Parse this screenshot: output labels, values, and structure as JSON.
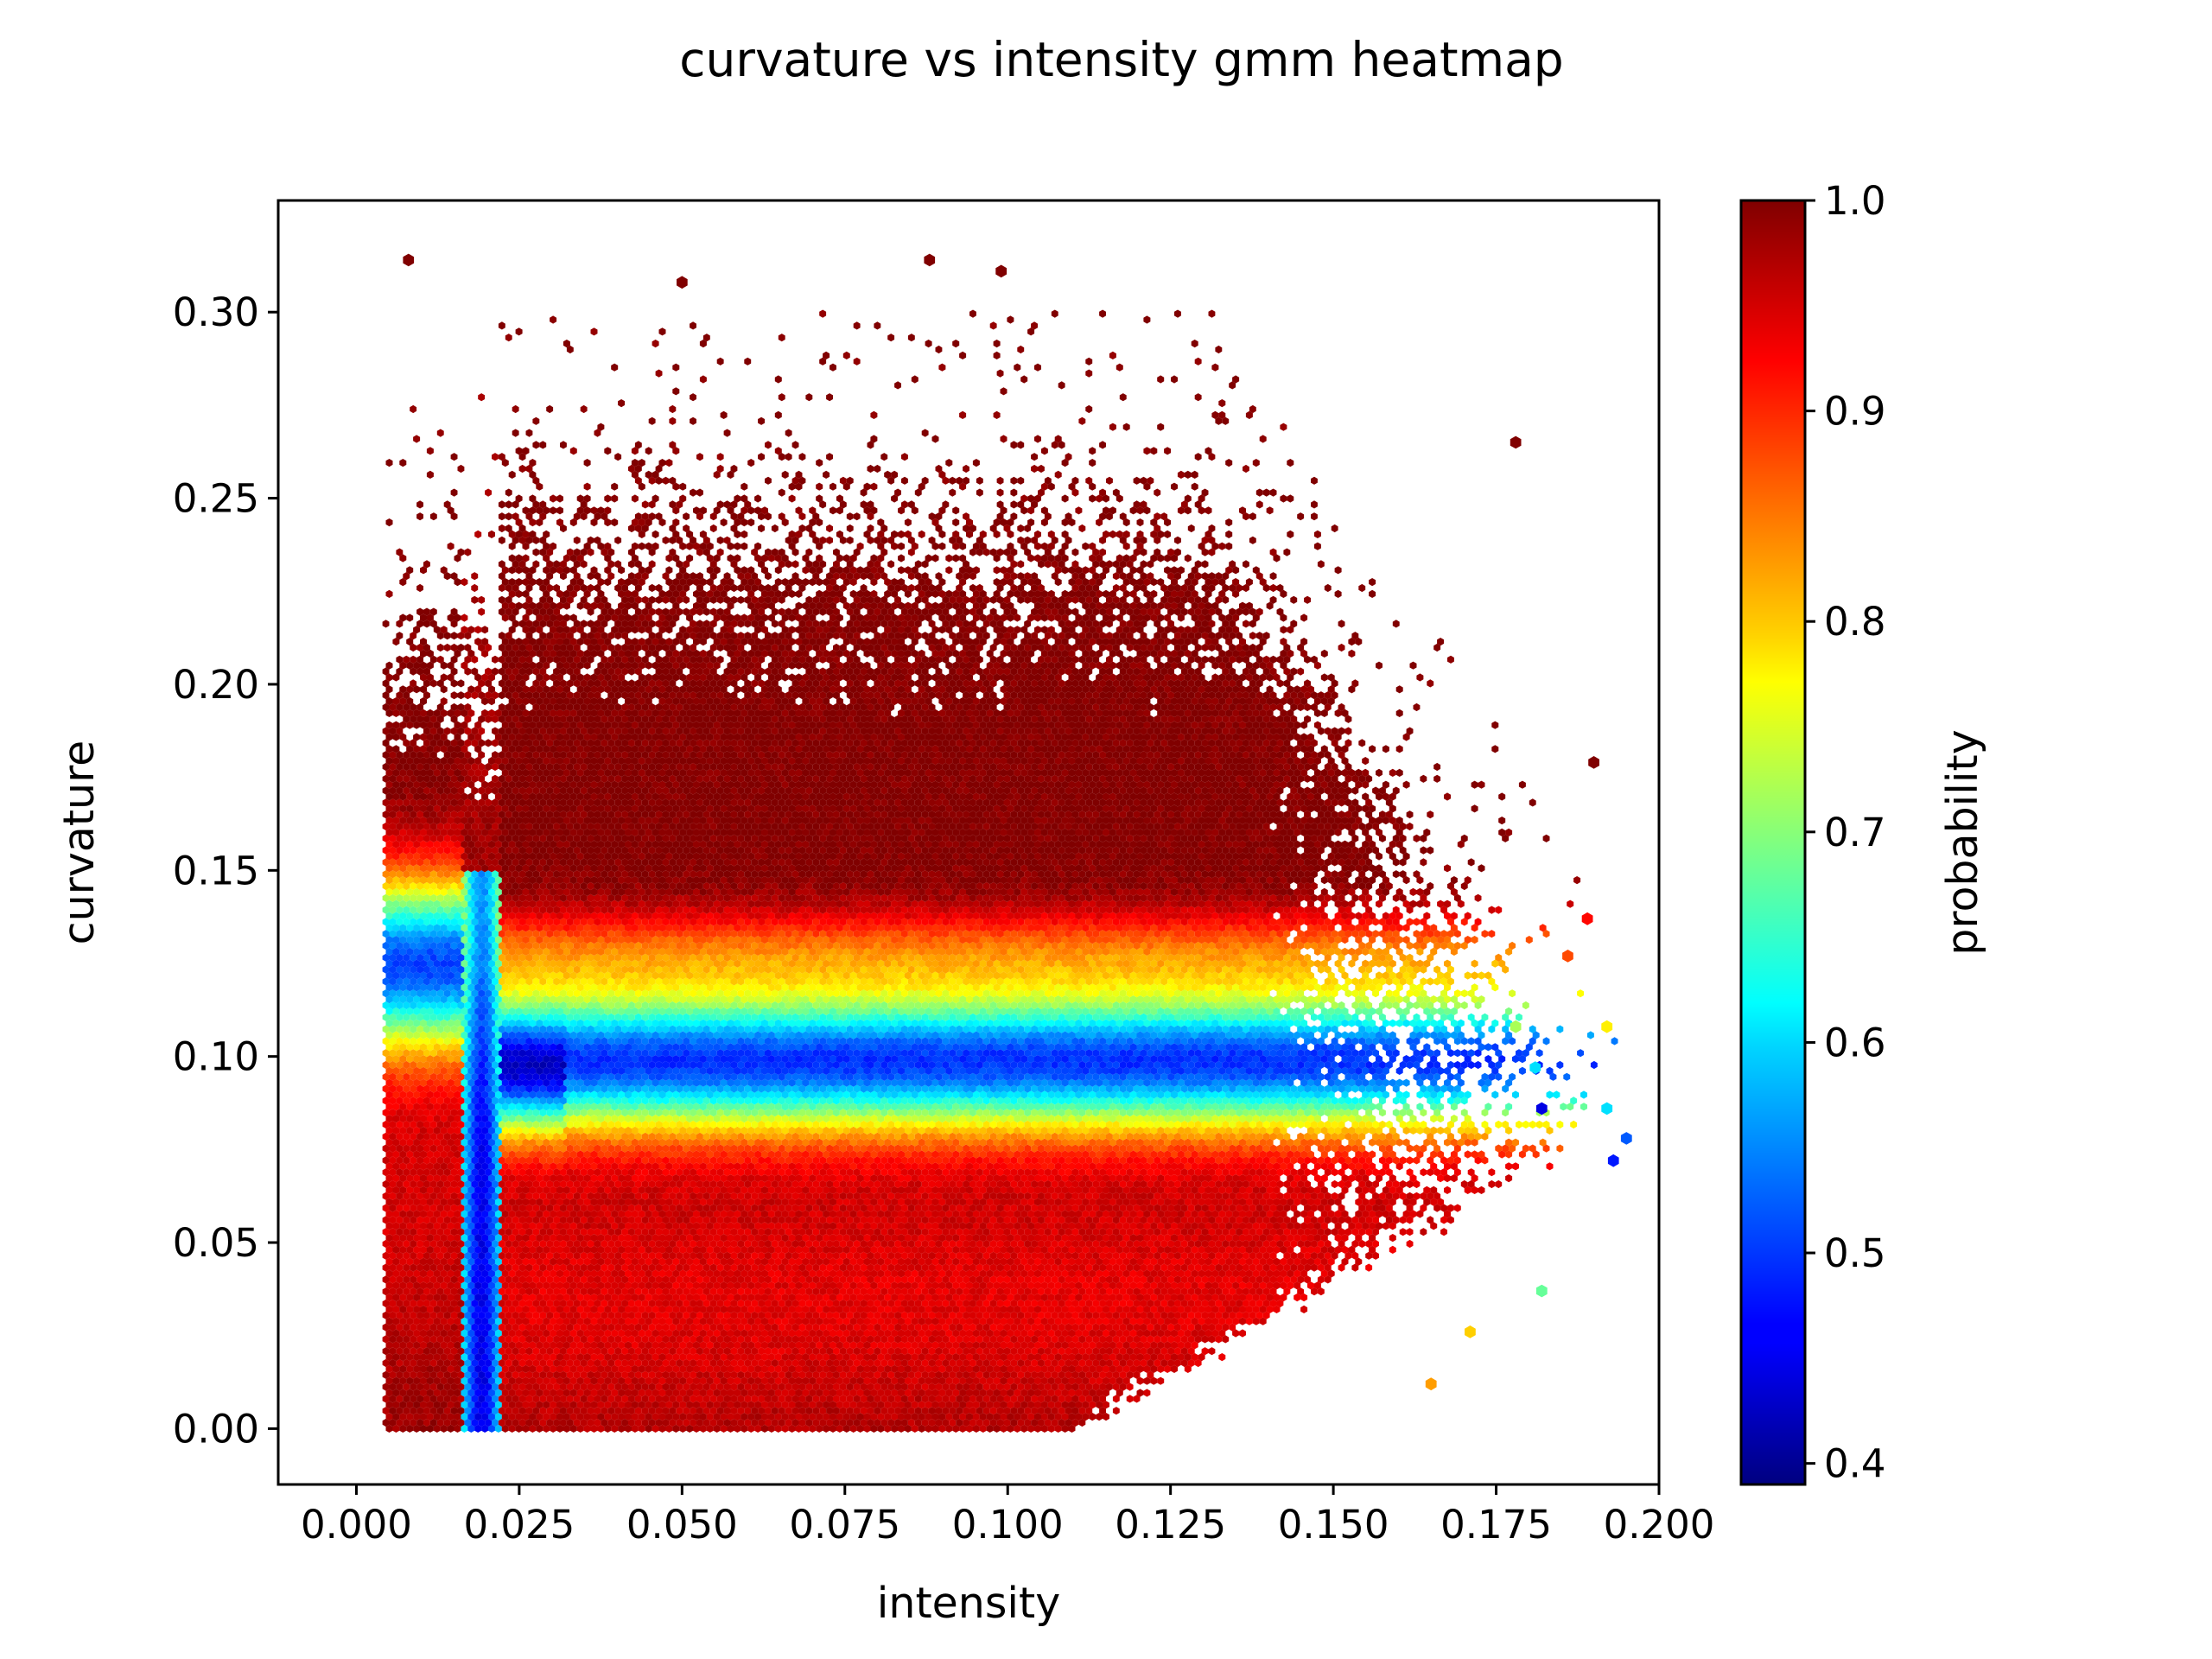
{
  "title": "curvature vs intensity gmm heatmap",
  "chart_data": {
    "type": "heatmap",
    "plot_style": "hexbin",
    "title": "curvature vs intensity gmm heatmap",
    "xlabel": "intensity",
    "ylabel": "curvature",
    "xlim": [
      -0.012,
      0.2
    ],
    "ylim": [
      -0.015,
      0.33
    ],
    "xticks": [
      "0.000",
      "0.025",
      "0.050",
      "0.075",
      "0.100",
      "0.125",
      "0.150",
      "0.175",
      "0.200"
    ],
    "yticks": [
      "0.00",
      "0.05",
      "0.10",
      "0.15",
      "0.20",
      "0.25",
      "0.30"
    ],
    "colorbar": {
      "label": "probability",
      "colormap": "jet",
      "range": [
        0.39,
        1.0
      ],
      "ticks": [
        "0.4",
        "0.5",
        "0.6",
        "0.7",
        "0.8",
        "0.9",
        "1.0"
      ]
    },
    "grid": false,
    "regions": [
      {
        "intensity_range": [
          0.004,
          0.016
        ],
        "curvature_range": [
          0.0,
          0.1
        ],
        "probability": 0.93
      },
      {
        "intensity_range": [
          0.004,
          0.016
        ],
        "curvature_range": [
          0.1,
          0.14
        ],
        "probability": 0.55
      },
      {
        "intensity_range": [
          0.004,
          0.016
        ],
        "curvature_range": [
          0.14,
          0.17
        ],
        "probability": 0.92
      },
      {
        "intensity_range": [
          0.017,
          0.021
        ],
        "curvature_range": [
          0.0,
          0.1
        ],
        "probability": 0.62
      },
      {
        "intensity_range": [
          0.022,
          0.16
        ],
        "curvature_range": [
          0.0,
          0.07
        ],
        "probability": 0.96
      },
      {
        "intensity_range": [
          0.022,
          0.16
        ],
        "curvature_range": [
          0.09,
          0.11
        ],
        "probability": 0.5
      },
      {
        "intensity_range": [
          0.022,
          0.16
        ],
        "curvature_range": [
          0.12,
          0.14
        ],
        "probability": 0.9
      },
      {
        "intensity_range": [
          0.022,
          0.15
        ],
        "curvature_range": [
          0.15,
          0.29
        ],
        "probability": 1.0
      }
    ],
    "outer_points": [
      {
        "x": 0.008,
        "y": 0.314,
        "p": 1.0
      },
      {
        "x": 0.05,
        "y": 0.308,
        "p": 1.0
      },
      {
        "x": 0.088,
        "y": 0.314,
        "p": 1.0
      },
      {
        "x": 0.099,
        "y": 0.311,
        "p": 1.0
      },
      {
        "x": 0.178,
        "y": 0.265,
        "p": 1.0
      },
      {
        "x": 0.19,
        "y": 0.179,
        "p": 1.0
      },
      {
        "x": 0.189,
        "y": 0.137,
        "p": 0.92
      },
      {
        "x": 0.186,
        "y": 0.127,
        "p": 0.88
      },
      {
        "x": 0.192,
        "y": 0.108,
        "p": 0.78
      },
      {
        "x": 0.192,
        "y": 0.086,
        "p": 0.6
      },
      {
        "x": 0.195,
        "y": 0.078,
        "p": 0.52
      },
      {
        "x": 0.193,
        "y": 0.072,
        "p": 0.48
      },
      {
        "x": 0.182,
        "y": 0.037,
        "p": 0.68
      },
      {
        "x": 0.165,
        "y": 0.012,
        "p": 0.83
      },
      {
        "x": 0.171,
        "y": 0.026,
        "p": 0.8
      },
      {
        "x": 0.182,
        "y": 0.086,
        "p": 0.45
      },
      {
        "x": 0.181,
        "y": 0.097,
        "p": 0.6
      },
      {
        "x": 0.178,
        "y": 0.108,
        "p": 0.72
      }
    ]
  }
}
